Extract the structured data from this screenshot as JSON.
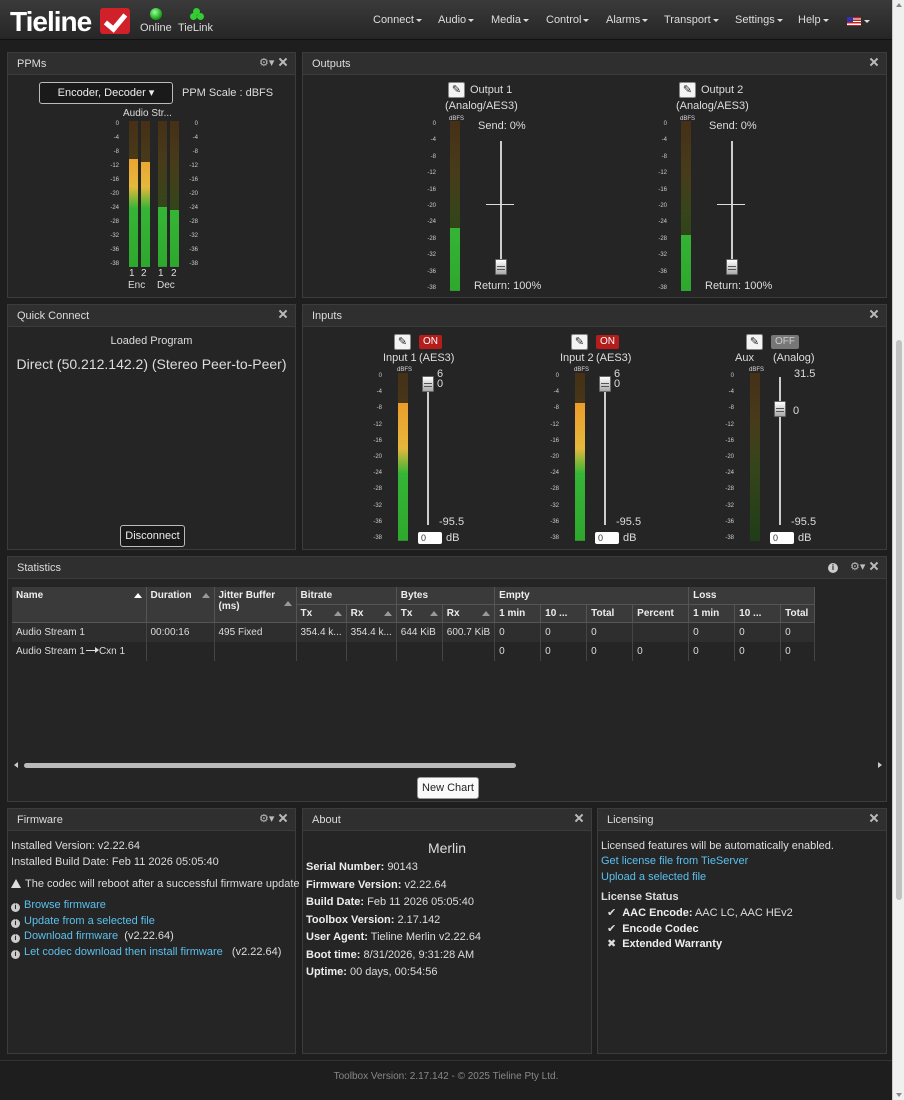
{
  "header": {
    "logo": "Tieline",
    "status_online": "Online",
    "status_tielink": "TieLink",
    "menu": [
      "Connect",
      "Audio",
      "Media",
      "Control",
      "Alarms",
      "Transport",
      "Settings",
      "Help"
    ],
    "flag_icon": "us-flag-icon"
  },
  "ppms": {
    "title": "PPMs",
    "dropdown_label": "Encoder, Decoder",
    "scale_label": "PPM Scale : dBFS",
    "stream_label": "Audio Str...",
    "scale_ticks": [
      "0",
      "-4",
      "-8",
      "-12",
      "-16",
      "-20",
      "-24",
      "-28",
      "-32",
      "-36",
      "-38"
    ],
    "channel_numbers": [
      "1",
      "2",
      "1",
      "2"
    ],
    "group_labels": [
      "Enc",
      "Dec"
    ],
    "levels": [
      0.74,
      0.72,
      0.41,
      0.39
    ]
  },
  "outputs": {
    "title": "Outputs",
    "meter_unit": "dBFS",
    "scale_ticks": [
      "0",
      "-4",
      "-8",
      "-12",
      "-16",
      "-20",
      "-24",
      "-28",
      "-32",
      "-36",
      "-38"
    ],
    "items": [
      {
        "name": "Output 1",
        "type": "(Analog/AES3)",
        "send": "Send: 0%",
        "return": "Return: 100%",
        "level": 0.37
      },
      {
        "name": "Output 2",
        "type": "(Analog/AES3)",
        "send": "Send: 0%",
        "return": "Return: 100%",
        "level": 0.33
      }
    ]
  },
  "quick_connect": {
    "title": "Quick Connect",
    "loaded_label": "Loaded Program",
    "program": "Direct (50.212.142.2) (Stereo Peer-to-Peer)",
    "disconnect_label": "Disconnect"
  },
  "inputs": {
    "title": "Inputs",
    "meter_unit": "dBFS",
    "scale_ticks": [
      "0",
      "-4",
      "-8",
      "-12",
      "-16",
      "-20",
      "-24",
      "-28",
      "-32",
      "-36",
      "-38"
    ],
    "db_unit": "dB",
    "items": [
      {
        "name": "Input 1",
        "type": "(AES3)",
        "state": "ON",
        "top_a": "6",
        "top_b": "0",
        "bottom": "-95.5",
        "db_value": "0",
        "level": 0.82
      },
      {
        "name": "Input 2",
        "type": "(AES3)",
        "state": "ON",
        "top_a": "6",
        "top_b": "0",
        "bottom": "-95.5",
        "db_value": "0",
        "level": 0.82
      },
      {
        "name": "Aux",
        "type": "(Analog)",
        "state": "OFF",
        "top_a": "31.5",
        "top_b": "0",
        "bottom": "-95.5",
        "db_value": "0",
        "level": 0.0
      }
    ]
  },
  "statistics": {
    "title": "Statistics",
    "header_groups": {
      "name": "Name",
      "duration": "Duration",
      "jitter": "Jitter Buffer (ms)",
      "bitrate": "Bitrate",
      "bytes": "Bytes",
      "empty": "Empty",
      "loss": "Loss"
    },
    "sub_headers": [
      "Tx",
      "Rx",
      "Tx",
      "Rx",
      "1 min",
      "10 ...",
      "Total",
      "Percent",
      "1 min",
      "10 ...",
      "Total"
    ],
    "rows": [
      {
        "name": "Audio Stream 1",
        "duration": "00:00:16",
        "jitter": "495 Fixed",
        "cells": [
          "354.4 k...",
          "354.4 k...",
          "644 KiB",
          "600.7 KiB",
          "0",
          "0",
          "0",
          "",
          "0",
          "0",
          "0"
        ]
      },
      {
        "name": "Audio Stream 1",
        "name_suffix": "Cxn 1",
        "duration": "",
        "jitter": "",
        "cells": [
          "",
          "",
          "",
          "",
          "0",
          "0",
          "0",
          "0",
          "0",
          "0",
          "0"
        ]
      }
    ],
    "new_chart_label": "New Chart"
  },
  "firmware": {
    "title": "Firmware",
    "installed_version": "Installed Version: v2.22.64",
    "installed_build": "Installed Build Date: Feb 11 2026 05:05:40",
    "warning": "The codec will reboot after a successful firmware update",
    "links": [
      {
        "label": "Browse firmware",
        "suffix": ""
      },
      {
        "label": "Update from a selected file",
        "suffix": ""
      },
      {
        "label": "Download firmware",
        "suffix": "(v2.22.64)"
      },
      {
        "label": "Let codec download then install firmware",
        "suffix": "(v2.22.64)"
      }
    ]
  },
  "about": {
    "title": "About",
    "device": "Merlin",
    "fields": [
      {
        "label": "Serial Number:",
        "value": "90143"
      },
      {
        "label": "Firmware Version:",
        "value": "v2.22.64"
      },
      {
        "label": "Build Date:",
        "value": "Feb 11 2026 05:05:40"
      },
      {
        "label": "Toolbox Version:",
        "value": "2.17.142"
      },
      {
        "label": "User Agent:",
        "value": "Tieline Merlin v2.22.64"
      },
      {
        "label": "Boot time:",
        "value": "8/31/2026, 9:31:28 AM"
      },
      {
        "label": "Uptime:",
        "value": "00 days, 00:54:56"
      }
    ]
  },
  "licensing": {
    "title": "Licensing",
    "note": "Licensed features will be automatically enabled.",
    "link_tieserver": "Get license file from TieServer",
    "link_upload": "Upload a selected file",
    "status_heading": "License Status",
    "features": [
      {
        "mark": "✔",
        "label": "AAC Encode:",
        "value": "AAC LC, AAC HEv2"
      },
      {
        "mark": "✔",
        "label": "Encode Codec",
        "value": ""
      },
      {
        "mark": "✖",
        "label": "Extended Warranty",
        "value": ""
      }
    ]
  },
  "footer": {
    "text": "Toolbox Version:   2.17.142 - © 2025 Tieline Pty Ltd."
  }
}
